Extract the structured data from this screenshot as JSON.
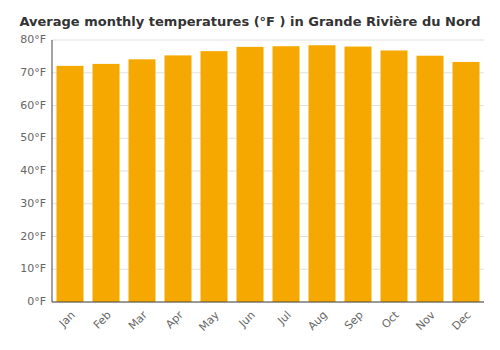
{
  "chart_data": {
    "type": "bar",
    "title": "Average monthly temperatures (°F ) in Grande Rivière du Nord",
    "categories": [
      "Jan",
      "Feb",
      "Mar",
      "Apr",
      "May",
      "Jun",
      "Jul",
      "Aug",
      "Sep",
      "Oct",
      "Nov",
      "Dec"
    ],
    "values": [
      72.1,
      72.7,
      74.1,
      75.3,
      76.6,
      77.9,
      78.1,
      78.4,
      78.0,
      76.8,
      75.2,
      73.3
    ],
    "color": "#F5A800",
    "ylim": [
      0,
      80
    ],
    "yticks": [
      {
        "value": 0,
        "label": "0°F"
      },
      {
        "value": 10,
        "label": "10°F"
      },
      {
        "value": 20,
        "label": "20°F"
      },
      {
        "value": 30,
        "label": "30°F"
      },
      {
        "value": 40,
        "label": "40°F"
      },
      {
        "value": 50,
        "label": "50°F"
      },
      {
        "value": 60,
        "label": "60°F"
      },
      {
        "value": 70,
        "label": "70°F"
      },
      {
        "value": 80,
        "label": "80°F"
      }
    ],
    "grid": true
  }
}
